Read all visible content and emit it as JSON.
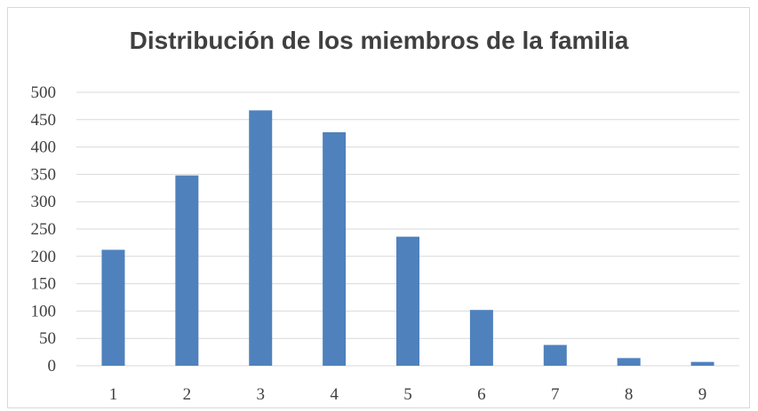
{
  "chart_data": {
    "type": "bar",
    "title": "Distribución de los miembros de la familia",
    "xlabel": "",
    "ylabel": "",
    "categories": [
      "1",
      "2",
      "3",
      "4",
      "5",
      "6",
      "7",
      "8",
      "9"
    ],
    "values": [
      212,
      348,
      467,
      427,
      236,
      102,
      38,
      14,
      7
    ],
    "ylim": [
      0,
      500
    ],
    "yticks": [
      "0",
      "50",
      "100",
      "150",
      "200",
      "250",
      "300",
      "350",
      "400",
      "450",
      "500"
    ],
    "grid": true,
    "legend": "none",
    "colors": {
      "bar": "#4f81bd",
      "grid": "#d9d9d9",
      "text": "#404040"
    }
  }
}
